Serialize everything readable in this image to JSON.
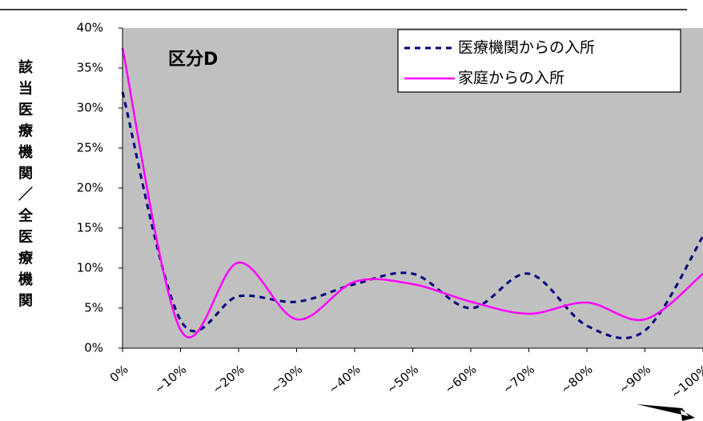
{
  "chart_data": {
    "type": "line",
    "annotation": "区分D",
    "ylabel": "該当医療機関／全医療機関",
    "categories": [
      "0%",
      "~10%",
      "~20%",
      "~30%",
      "~40%",
      "~50%",
      "~60%",
      "~70%",
      "~80%",
      "~90%",
      "~100%"
    ],
    "series": [
      {
        "name": "医療機関からの入所",
        "color": "#000080",
        "dash": true,
        "values": [
          32,
          3.5,
          6.5,
          5.8,
          8,
          9.3,
          5,
          9.3,
          2.8,
          2.2,
          14
        ]
      },
      {
        "name": "家庭からの入所",
        "color": "#ff00ff",
        "dash": false,
        "values": [
          37.5,
          2.3,
          10.7,
          3.6,
          8.3,
          8,
          5.8,
          4.3,
          5.7,
          3.6,
          9.3
        ]
      }
    ],
    "ylim": [
      0,
      40
    ],
    "yticks": [
      {
        "value": 0,
        "label": "0%"
      },
      {
        "value": 5,
        "label": "5%"
      },
      {
        "value": 10,
        "label": "10%"
      },
      {
        "value": 15,
        "label": "15%"
      },
      {
        "value": 20,
        "label": "20%"
      },
      {
        "value": 25,
        "label": "25%"
      },
      {
        "value": 30,
        "label": "30%"
      },
      {
        "value": 35,
        "label": "35%"
      },
      {
        "value": 40,
        "label": "40%"
      }
    ]
  }
}
